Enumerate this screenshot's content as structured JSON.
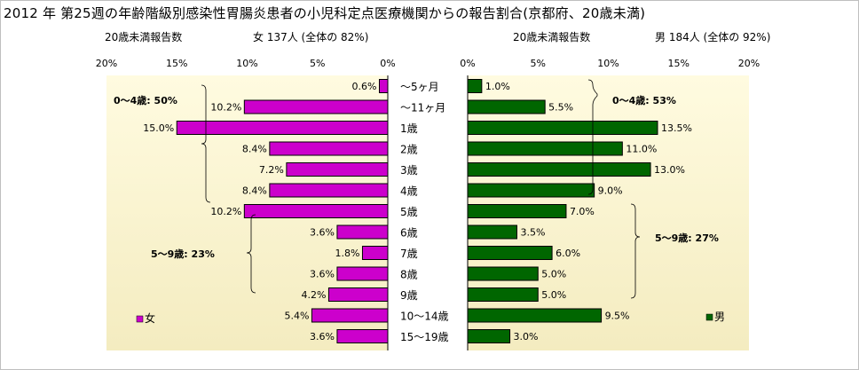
{
  "title": "2012 年 第25週の年齢階級別感染性胃腸炎患者の小児科定点医療機関からの報告割合(京都府、20歳未満)",
  "female_header": {
    "label": "20歳未満報告数",
    "summary": "女  137人 (全体の  82%)"
  },
  "male_header": {
    "label": "20歳未満報告数",
    "summary": "男  184人 (全体の  92%)"
  },
  "colors": {
    "female": "#cc00cc",
    "male": "#006600",
    "plot_bg_top": "#fffbe0",
    "plot_bg_bottom": "#f4ecc0"
  },
  "chart_data": [
    {
      "type": "bar",
      "orientation": "horizontal",
      "direction": "right-to-left",
      "series": [
        {
          "name": "女",
          "values": [
            0.6,
            10.2,
            15.0,
            8.4,
            7.2,
            8.4,
            10.2,
            3.6,
            1.8,
            3.6,
            4.2,
            5.4,
            3.6
          ]
        }
      ],
      "categories": [
        "～5ヶ月",
        "～11ヶ月",
        "1歳",
        "2歳",
        "3歳",
        "4歳",
        "5歳",
        "6歳",
        "7歳",
        "8歳",
        "9歳",
        "10～14歳",
        "15～19歳"
      ],
      "data_labels": [
        "0.6%",
        "10.2%",
        "15.0%",
        "8.4%",
        "7.2%",
        "8.4%",
        "10.2%",
        "3.6%",
        "1.8%",
        "3.6%",
        "4.2%",
        "5.4%",
        "3.6%"
      ],
      "xlim": [
        0,
        20
      ],
      "tick_labels": [
        "20%",
        "15%",
        "10%",
        "5%",
        "0%"
      ],
      "annotations": [
        {
          "text": "0～4歳: 50%"
        },
        {
          "text": "5～9歳: 23%"
        }
      ],
      "legend": {
        "label": "女",
        "placement": "bottom-left"
      }
    },
    {
      "type": "bar",
      "orientation": "horizontal",
      "direction": "left-to-right",
      "series": [
        {
          "name": "男",
          "values": [
            1.0,
            5.5,
            13.5,
            11.0,
            13.0,
            9.0,
            7.0,
            3.5,
            6.0,
            5.0,
            5.0,
            9.5,
            3.0
          ]
        }
      ],
      "categories": [
        "～5ヶ月",
        "～11ヶ月",
        "1歳",
        "2歳",
        "3歳",
        "4歳",
        "5歳",
        "6歳",
        "7歳",
        "8歳",
        "9歳",
        "10～14歳",
        "15～19歳"
      ],
      "data_labels": [
        "1.0%",
        "5.5%",
        "13.5%",
        "11.0%",
        "13.0%",
        "9.0%",
        "7.0%",
        "3.5%",
        "6.0%",
        "5.0%",
        "5.0%",
        "9.5%",
        "3.0%"
      ],
      "xlim": [
        0,
        20
      ],
      "tick_labels": [
        "0%",
        "5%",
        "10%",
        "15%",
        "20%"
      ],
      "annotations": [
        {
          "text": "0～4歳: 53%"
        },
        {
          "text": "5～9歳: 27%"
        }
      ],
      "legend": {
        "label": "男",
        "placement": "bottom-right"
      }
    }
  ]
}
